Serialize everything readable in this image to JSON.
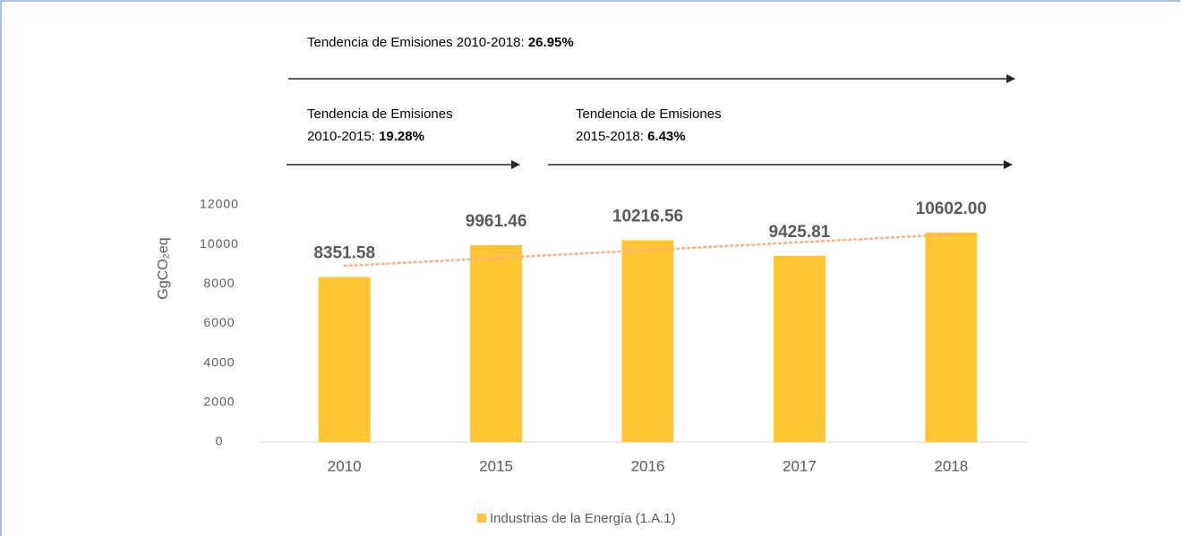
{
  "chart_data": {
    "type": "bar",
    "categories": [
      "2010",
      "2015",
      "2016",
      "2017",
      "2018"
    ],
    "series": [
      {
        "name": "Industrias de la Energía (1.A.1)",
        "color": "#ffc533",
        "values": [
          8351.58,
          9961.46,
          10216.56,
          9425.81,
          10602.0
        ],
        "value_labels": [
          "8351.58",
          "9961.46",
          "10216.56",
          "9425.81",
          "10602.00"
        ]
      }
    ],
    "ylabel": "GgCO₂eq",
    "ylim": [
      0,
      12000
    ],
    "yticks": [
      0,
      2000,
      4000,
      6000,
      8000,
      10000,
      12000
    ],
    "trendline": {
      "color": "#f4b183",
      "style": "dotted"
    },
    "legend": "bottom",
    "annotations": [
      {
        "lines": [
          "Tendencia de Emisiones 2010-2018:"
        ],
        "value": "26.95%"
      },
      {
        "lines": [
          "Tendencia de Emisiones",
          "2010-2015:"
        ],
        "value": "19.28%"
      },
      {
        "lines": [
          "Tendencia de Emisiones",
          "2015-2018:"
        ],
        "value": "6.43%"
      }
    ]
  }
}
